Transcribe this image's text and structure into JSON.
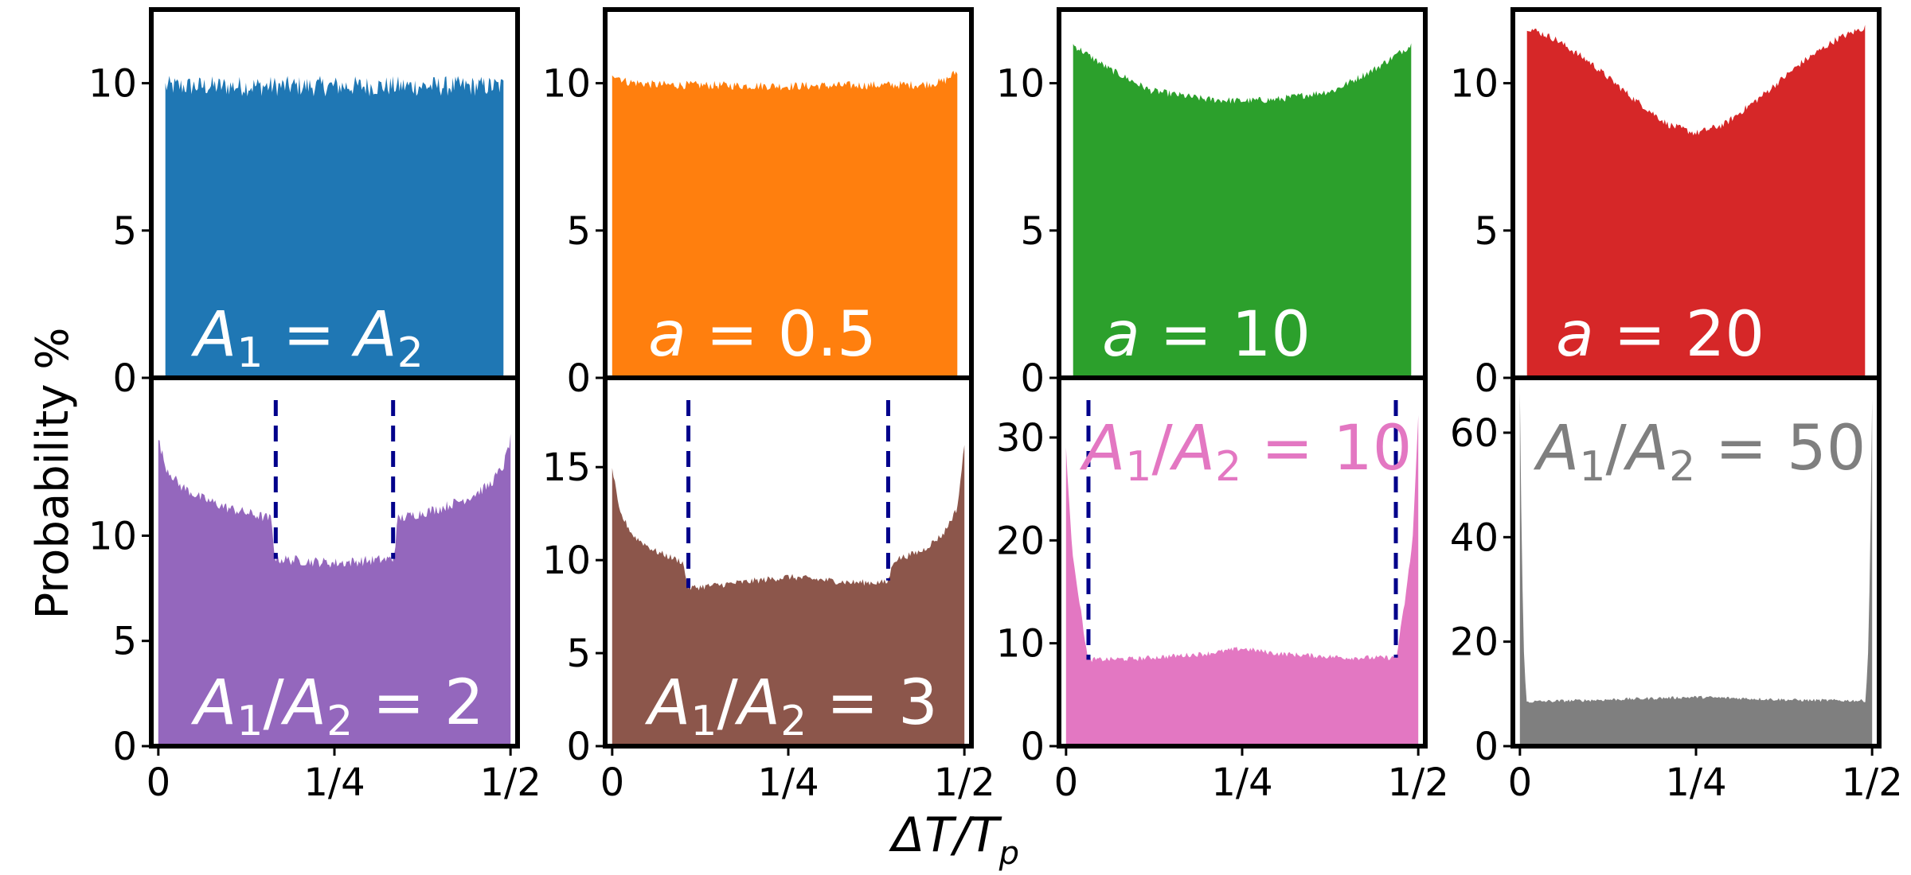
{
  "figure": {
    "ylabel": "Probability %",
    "xlabel_main": "ΔT/T",
    "xlabel_sub": "p"
  },
  "chart_data": [
    {
      "type": "area",
      "id": "p0",
      "row": 0,
      "col": 0,
      "color": "#1f77b4",
      "label": {
        "parts": [
          [
            "A",
            "i"
          ],
          [
            "1",
            "sub"
          ],
          [
            " = ",
            "n"
          ],
          [
            "A",
            "i"
          ],
          [
            "2",
            "sub"
          ]
        ],
        "color": "#ffffff"
      },
      "xlim": [
        -0.01,
        0.51
      ],
      "ylim": [
        0,
        12.5
      ],
      "yticks": [
        0,
        5,
        10
      ],
      "ytick_labels": [
        "0",
        "5",
        "10"
      ],
      "show_xticks": false,
      "x": [
        0.01,
        0.49
      ],
      "profile": [
        [
          0.01,
          9.9
        ],
        [
          0.25,
          9.9
        ],
        [
          0.49,
          9.9
        ]
      ],
      "noise": 0.35,
      "vlines": []
    },
    {
      "type": "area",
      "id": "p1",
      "row": 0,
      "col": 1,
      "color": "#ff7f0e",
      "label": {
        "parts": [
          [
            "a",
            "i"
          ],
          [
            " = 0.5",
            "n"
          ]
        ],
        "color": "#ffffff"
      },
      "xlim": [
        -0.01,
        0.51
      ],
      "ylim": [
        0,
        12.5
      ],
      "yticks": [
        0,
        5,
        10
      ],
      "ytick_labels": [
        "0",
        "5",
        "10"
      ],
      "show_xticks": false,
      "x": [
        0.0,
        0.49
      ],
      "profile": [
        [
          0.0,
          10.35
        ],
        [
          0.02,
          10.05
        ],
        [
          0.06,
          9.95
        ],
        [
          0.25,
          9.9
        ],
        [
          0.44,
          9.95
        ],
        [
          0.47,
          10.05
        ],
        [
          0.49,
          10.4
        ]
      ],
      "noise": 0.15,
      "vlines": []
    },
    {
      "type": "area",
      "id": "p2",
      "row": 0,
      "col": 2,
      "color": "#2ca02c",
      "label": {
        "parts": [
          [
            "a",
            "i"
          ],
          [
            " = 10",
            "n"
          ]
        ],
        "color": "#ffffff"
      },
      "xlim": [
        -0.01,
        0.51
      ],
      "ylim": [
        0,
        12.5
      ],
      "yticks": [
        0,
        5,
        10
      ],
      "ytick_labels": [
        "0",
        "5",
        "10"
      ],
      "show_xticks": false,
      "x": [
        0.01,
        0.49
      ],
      "profile": [
        [
          0.01,
          11.3
        ],
        [
          0.06,
          10.5
        ],
        [
          0.12,
          9.75
        ],
        [
          0.2,
          9.45
        ],
        [
          0.25,
          9.4
        ],
        [
          0.3,
          9.45
        ],
        [
          0.38,
          9.75
        ],
        [
          0.44,
          10.5
        ],
        [
          0.49,
          11.3
        ]
      ],
      "noise": 0.12,
      "vlines": []
    },
    {
      "type": "area",
      "id": "p3",
      "row": 0,
      "col": 3,
      "color": "#d62728",
      "label": {
        "parts": [
          [
            "a",
            "i"
          ],
          [
            " = 20",
            "n"
          ]
        ],
        "color": "#ffffff"
      },
      "xlim": [
        -0.01,
        0.51
      ],
      "ylim": [
        0,
        12.5
      ],
      "yticks": [
        0,
        5,
        10
      ],
      "ytick_labels": [
        "0",
        "5",
        "10"
      ],
      "show_xticks": false,
      "x": [
        0.01,
        0.49
      ],
      "profile": [
        [
          0.01,
          11.9
        ],
        [
          0.05,
          11.5
        ],
        [
          0.1,
          10.7
        ],
        [
          0.16,
          9.5
        ],
        [
          0.21,
          8.6
        ],
        [
          0.25,
          8.3
        ],
        [
          0.29,
          8.6
        ],
        [
          0.34,
          9.5
        ],
        [
          0.4,
          10.7
        ],
        [
          0.45,
          11.5
        ],
        [
          0.49,
          11.9
        ]
      ],
      "noise": 0.12,
      "vlines": []
    },
    {
      "type": "area",
      "id": "p4",
      "row": 1,
      "col": 0,
      "color": "#9467bd",
      "label": {
        "parts": [
          [
            "A",
            "i"
          ],
          [
            "1",
            "sub"
          ],
          [
            "/",
            "n"
          ],
          [
            "A",
            "i"
          ],
          [
            "2",
            "sub"
          ],
          [
            " = 2",
            "n"
          ]
        ],
        "color": "#ffffff"
      },
      "xlim": [
        -0.01,
        0.51
      ],
      "ylim": [
        0,
        17.5
      ],
      "yticks": [
        0,
        5,
        10
      ],
      "ytick_labels": [
        "0",
        "5",
        "10"
      ],
      "show_xticks": true,
      "xticks": [
        0,
        0.25,
        0.5
      ],
      "xtick_labels": [
        "0",
        "1/4",
        "1/2"
      ],
      "x": [
        0.0,
        0.5
      ],
      "profile": [
        [
          0.0,
          14.6
        ],
        [
          0.01,
          13.3
        ],
        [
          0.03,
          12.4
        ],
        [
          0.06,
          11.8
        ],
        [
          0.1,
          11.3
        ],
        [
          0.16,
          10.8
        ],
        [
          0.166,
          8.9
        ],
        [
          0.25,
          8.7
        ],
        [
          0.334,
          8.9
        ],
        [
          0.34,
          10.8
        ],
        [
          0.4,
          11.3
        ],
        [
          0.44,
          11.8
        ],
        [
          0.47,
          12.4
        ],
        [
          0.49,
          13.3
        ],
        [
          0.5,
          14.6
        ]
      ],
      "noise": 0.25,
      "vlines": [
        0.1667,
        0.3333
      ]
    },
    {
      "type": "area",
      "id": "p5",
      "row": 1,
      "col": 1,
      "color": "#8c564b",
      "label": {
        "parts": [
          [
            "A",
            "i"
          ],
          [
            "1",
            "sub"
          ],
          [
            "/",
            "n"
          ],
          [
            "A",
            "i"
          ],
          [
            "2",
            "sub"
          ],
          [
            " = 3",
            "n"
          ]
        ],
        "color": "#ffffff"
      },
      "xlim": [
        -0.01,
        0.51
      ],
      "ylim": [
        0,
        19.8
      ],
      "yticks": [
        0,
        5,
        10,
        15
      ],
      "ytick_labels": [
        "0",
        "5",
        "10",
        "15"
      ],
      "show_xticks": true,
      "xticks": [
        0,
        0.25,
        0.5
      ],
      "xtick_labels": [
        "0",
        "1/4",
        "1/2"
      ],
      "x": [
        0.0,
        0.5
      ],
      "profile": [
        [
          0.0,
          15.0
        ],
        [
          0.01,
          12.6
        ],
        [
          0.03,
          11.3
        ],
        [
          0.06,
          10.5
        ],
        [
          0.1,
          9.9
        ],
        [
          0.108,
          8.5
        ],
        [
          0.16,
          8.7
        ],
        [
          0.25,
          9.1
        ],
        [
          0.34,
          8.8
        ],
        [
          0.391,
          8.8
        ],
        [
          0.4,
          10.0
        ],
        [
          0.44,
          10.5
        ],
        [
          0.47,
          11.4
        ],
        [
          0.49,
          12.8
        ],
        [
          0.5,
          16.2
        ]
      ],
      "noise": 0.18,
      "vlines": [
        0.1082,
        0.3918
      ]
    },
    {
      "type": "area",
      "id": "p6",
      "row": 1,
      "col": 2,
      "color": "#e377c2",
      "label": {
        "parts": [
          [
            "A",
            "i"
          ],
          [
            "1",
            "sub"
          ],
          [
            "/",
            "n"
          ],
          [
            "A",
            "i"
          ],
          [
            "2",
            "sub"
          ],
          [
            " = 10",
            "n"
          ]
        ],
        "color": "#e377c2"
      },
      "xlim": [
        -0.01,
        0.51
      ],
      "ylim": [
        0,
        35.8
      ],
      "yticks": [
        0,
        10,
        20,
        30
      ],
      "ytick_labels": [
        "0",
        "10",
        "20",
        "30"
      ],
      "show_xticks": true,
      "xticks": [
        0,
        0.25,
        0.5
      ],
      "xtick_labels": [
        "0",
        "1/4",
        "1/2"
      ],
      "x": [
        0.0,
        0.5
      ],
      "profile": [
        [
          0.0,
          29.0
        ],
        [
          0.008,
          19.5
        ],
        [
          0.018,
          14.5
        ],
        [
          0.031,
          8.4
        ],
        [
          0.1,
          8.5
        ],
        [
          0.2,
          9.0
        ],
        [
          0.25,
          9.5
        ],
        [
          0.3,
          9.0
        ],
        [
          0.4,
          8.6
        ],
        [
          0.469,
          8.6
        ],
        [
          0.482,
          14.5
        ],
        [
          0.492,
          20.0
        ],
        [
          0.5,
          32.0
        ]
      ],
      "noise": 0.25,
      "vlines": [
        0.0318,
        0.4682
      ]
    },
    {
      "type": "area",
      "id": "p7",
      "row": 1,
      "col": 3,
      "color": "#7f7f7f",
      "label": {
        "parts": [
          [
            "A",
            "i"
          ],
          [
            "1",
            "sub"
          ],
          [
            "/",
            "n"
          ],
          [
            "A",
            "i"
          ],
          [
            "2",
            "sub"
          ],
          [
            " = 50",
            "n"
          ]
        ],
        "color": "#7f7f7f"
      },
      "xlim": [
        -0.01,
        0.51
      ],
      "ylim": [
        0,
        70.5
      ],
      "yticks": [
        0,
        20,
        40,
        60
      ],
      "ytick_labels": [
        "0",
        "20",
        "40",
        "60"
      ],
      "show_xticks": true,
      "xticks": [
        0,
        0.25,
        0.5
      ],
      "xtick_labels": [
        "0",
        "1/4",
        "1/2"
      ],
      "x": [
        0.0,
        0.5
      ],
      "profile": [
        [
          0.0,
          68.0
        ],
        [
          0.002,
          45.0
        ],
        [
          0.005,
          20.0
        ],
        [
          0.009,
          8.5
        ],
        [
          0.1,
          8.8
        ],
        [
          0.25,
          9.4
        ],
        [
          0.4,
          8.8
        ],
        [
          0.491,
          8.7
        ],
        [
          0.495,
          20.0
        ],
        [
          0.498,
          45.0
        ],
        [
          0.5,
          66.0
        ]
      ],
      "noise": 0.3,
      "vlines": []
    }
  ]
}
